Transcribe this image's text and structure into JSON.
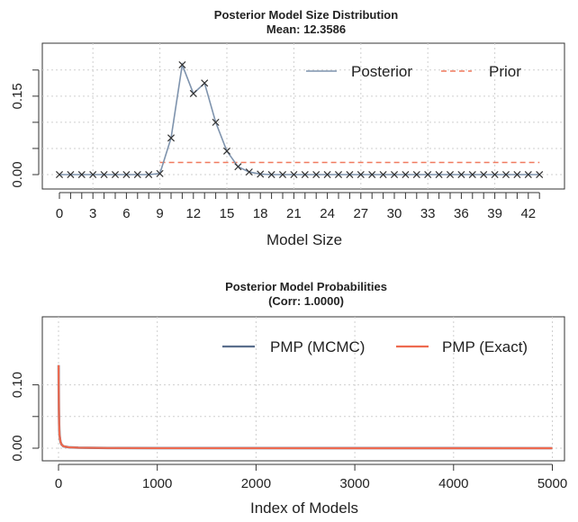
{
  "chart_data": [
    {
      "type": "line",
      "title": "Posterior Model Size Distribution",
      "subtitle": "Mean: 12.3586",
      "xlabel": "Model Size",
      "ylabel": "",
      "xlim": [
        0,
        43
      ],
      "ylim": [
        0,
        0.2
      ],
      "grid": true,
      "legend_position": "top-right",
      "x_tick_labels": [
        "0",
        "3",
        "6",
        "9",
        "12",
        "15",
        "18",
        "21",
        "24",
        "27",
        "30",
        "33",
        "36",
        "39",
        "42"
      ],
      "y_tick_labels": [
        "0.00",
        "0.15"
      ],
      "x": [
        0,
        1,
        2,
        3,
        4,
        5,
        6,
        7,
        8,
        9,
        10,
        11,
        12,
        13,
        14,
        15,
        16,
        17,
        18,
        19,
        20,
        21,
        22,
        23,
        24,
        25,
        26,
        27,
        28,
        29,
        30,
        31,
        32,
        33,
        34,
        35,
        36,
        37,
        38,
        39,
        40,
        41,
        42,
        43
      ],
      "series": [
        {
          "name": "Posterior",
          "color": "#7e93ad",
          "marker": "x",
          "values": [
            0,
            0,
            0,
            0,
            0,
            0,
            0,
            0,
            0,
            0.002,
            0.07,
            0.21,
            0.155,
            0.175,
            0.1,
            0.045,
            0.015,
            0.005,
            0.001,
            0,
            0,
            0,
            0,
            0,
            0,
            0,
            0,
            0,
            0,
            0,
            0,
            0,
            0,
            0,
            0,
            0,
            0,
            0,
            0,
            0,
            0,
            0,
            0,
            0
          ]
        },
        {
          "name": "Prior",
          "color": "#f07a5f",
          "dash": true,
          "x": [
            9,
            43
          ],
          "values": [
            0.0233,
            0.0233
          ]
        }
      ]
    },
    {
      "type": "line",
      "title": "Posterior Model Probabilities",
      "subtitle": "(Corr: 1.0000)",
      "xlabel": "Index of Models",
      "ylabel": "",
      "xlim": [
        0,
        5000
      ],
      "ylim": [
        0,
        0.15
      ],
      "grid": true,
      "legend_position": "top-right",
      "x_tick_labels": [
        "0",
        "1000",
        "2000",
        "3000",
        "4000",
        "5000"
      ],
      "y_tick_labels": [
        "0.00",
        "0.10"
      ],
      "series": [
        {
          "name": "PMP (MCMC)",
          "color": "#5a6e8c",
          "x": [
            1,
            2,
            3,
            4,
            5,
            6,
            8,
            10,
            15,
            20,
            30,
            50,
            100,
            200,
            500,
            1000,
            5000
          ],
          "values": [
            0.131,
            0.1,
            0.08,
            0.062,
            0.05,
            0.04,
            0.03,
            0.022,
            0.015,
            0.01,
            0.006,
            0.003,
            0.0015,
            0.0008,
            0.0003,
            0.0001,
            0
          ]
        },
        {
          "name": "PMP (Exact)",
          "color": "#ee6a4f",
          "x": [
            1,
            2,
            3,
            4,
            5,
            6,
            8,
            10,
            15,
            20,
            30,
            50,
            100,
            200,
            500,
            1000,
            5000
          ],
          "values": [
            0.131,
            0.1,
            0.08,
            0.062,
            0.05,
            0.04,
            0.03,
            0.022,
            0.015,
            0.01,
            0.006,
            0.003,
            0.0015,
            0.0008,
            0.0003,
            0.0001,
            0
          ]
        }
      ]
    }
  ]
}
